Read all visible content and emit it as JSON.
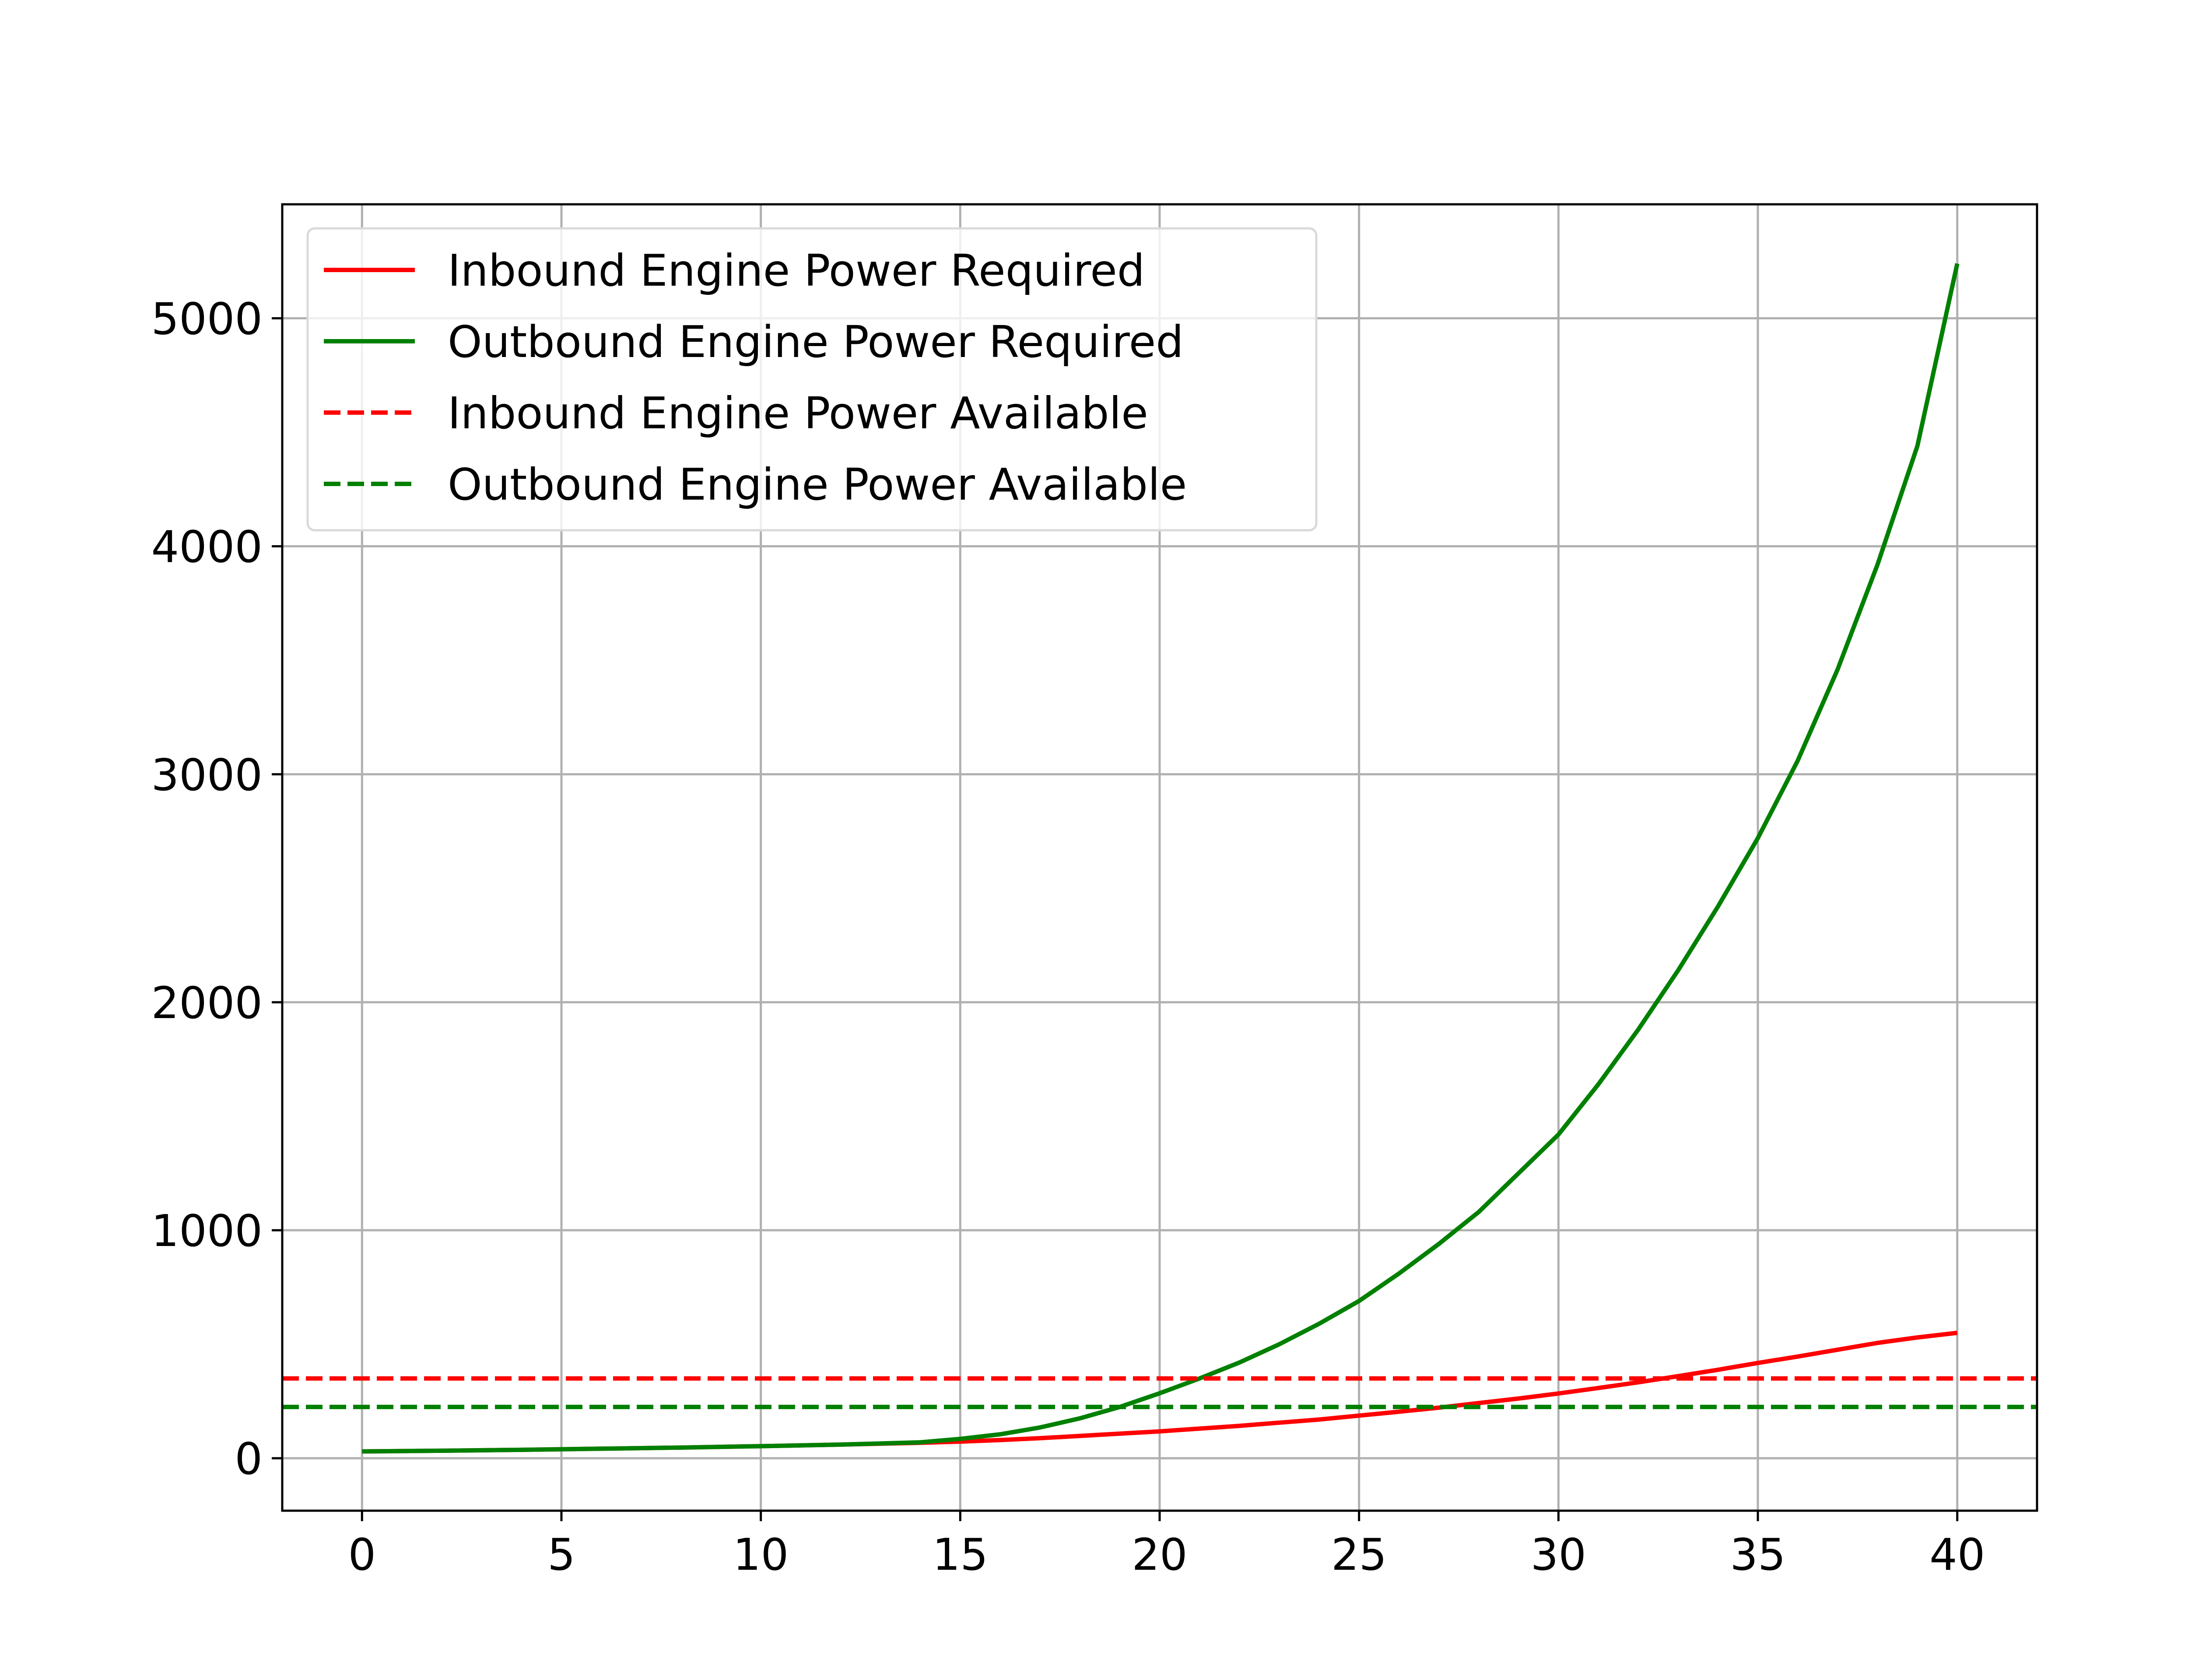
{
  "chart_data": {
    "type": "line",
    "title": "",
    "xlabel": "",
    "ylabel": "",
    "xlim": [
      -2,
      42
    ],
    "ylim": [
      -230,
      5500
    ],
    "x_ticks": [
      0,
      5,
      10,
      15,
      20,
      25,
      30,
      35,
      40
    ],
    "x_tick_labels": [
      "0",
      "5",
      "10",
      "15",
      "20",
      "25",
      "30",
      "35",
      "40"
    ],
    "y_ticks": [
      0,
      1000,
      2000,
      3000,
      4000,
      5000
    ],
    "y_tick_labels": [
      "0",
      "1000",
      "2000",
      "3000",
      "4000",
      "5000"
    ],
    "grid": true,
    "legend_position": "upper-left",
    "x": [
      0,
      2,
      4,
      6,
      8,
      10,
      12,
      14,
      15,
      16,
      17,
      18,
      19,
      20,
      21,
      22,
      23,
      24,
      25,
      26,
      27,
      28,
      29,
      30,
      31,
      32,
      33,
      34,
      35,
      36,
      37,
      38,
      39,
      40
    ],
    "series": [
      {
        "name": "Inbound Engine Power Required",
        "color": "#ff0000",
        "style": "solid",
        "values": [
          30,
          33,
          37,
          42,
          47,
          53,
          60,
          68,
          73,
          80,
          88,
          98,
          108,
          118,
          130,
          142,
          156,
          170,
          187,
          204,
          222,
          242,
          262,
          284,
          308,
          333,
          360,
          388,
          418,
          446,
          476,
          506,
          530,
          550
        ]
      },
      {
        "name": "Outbound Engine Power Required",
        "color": "#008000",
        "style": "solid",
        "values": [
          30,
          33,
          37,
          42,
          47,
          53,
          60,
          70,
          85,
          105,
          135,
          175,
          225,
          285,
          350,
          420,
          500,
          590,
          690,
          810,
          940,
          1080,
          1250,
          1420,
          1640,
          1880,
          2140,
          2420,
          2720,
          3060,
          3460,
          3920,
          4440,
          5240
        ]
      },
      {
        "name": "Inbound Engine Power Available",
        "color": "#ff0000",
        "style": "dashed",
        "constant": 350
      },
      {
        "name": "Outbound Engine Power Available",
        "color": "#008000",
        "style": "dashed",
        "constant": 225
      }
    ]
  }
}
